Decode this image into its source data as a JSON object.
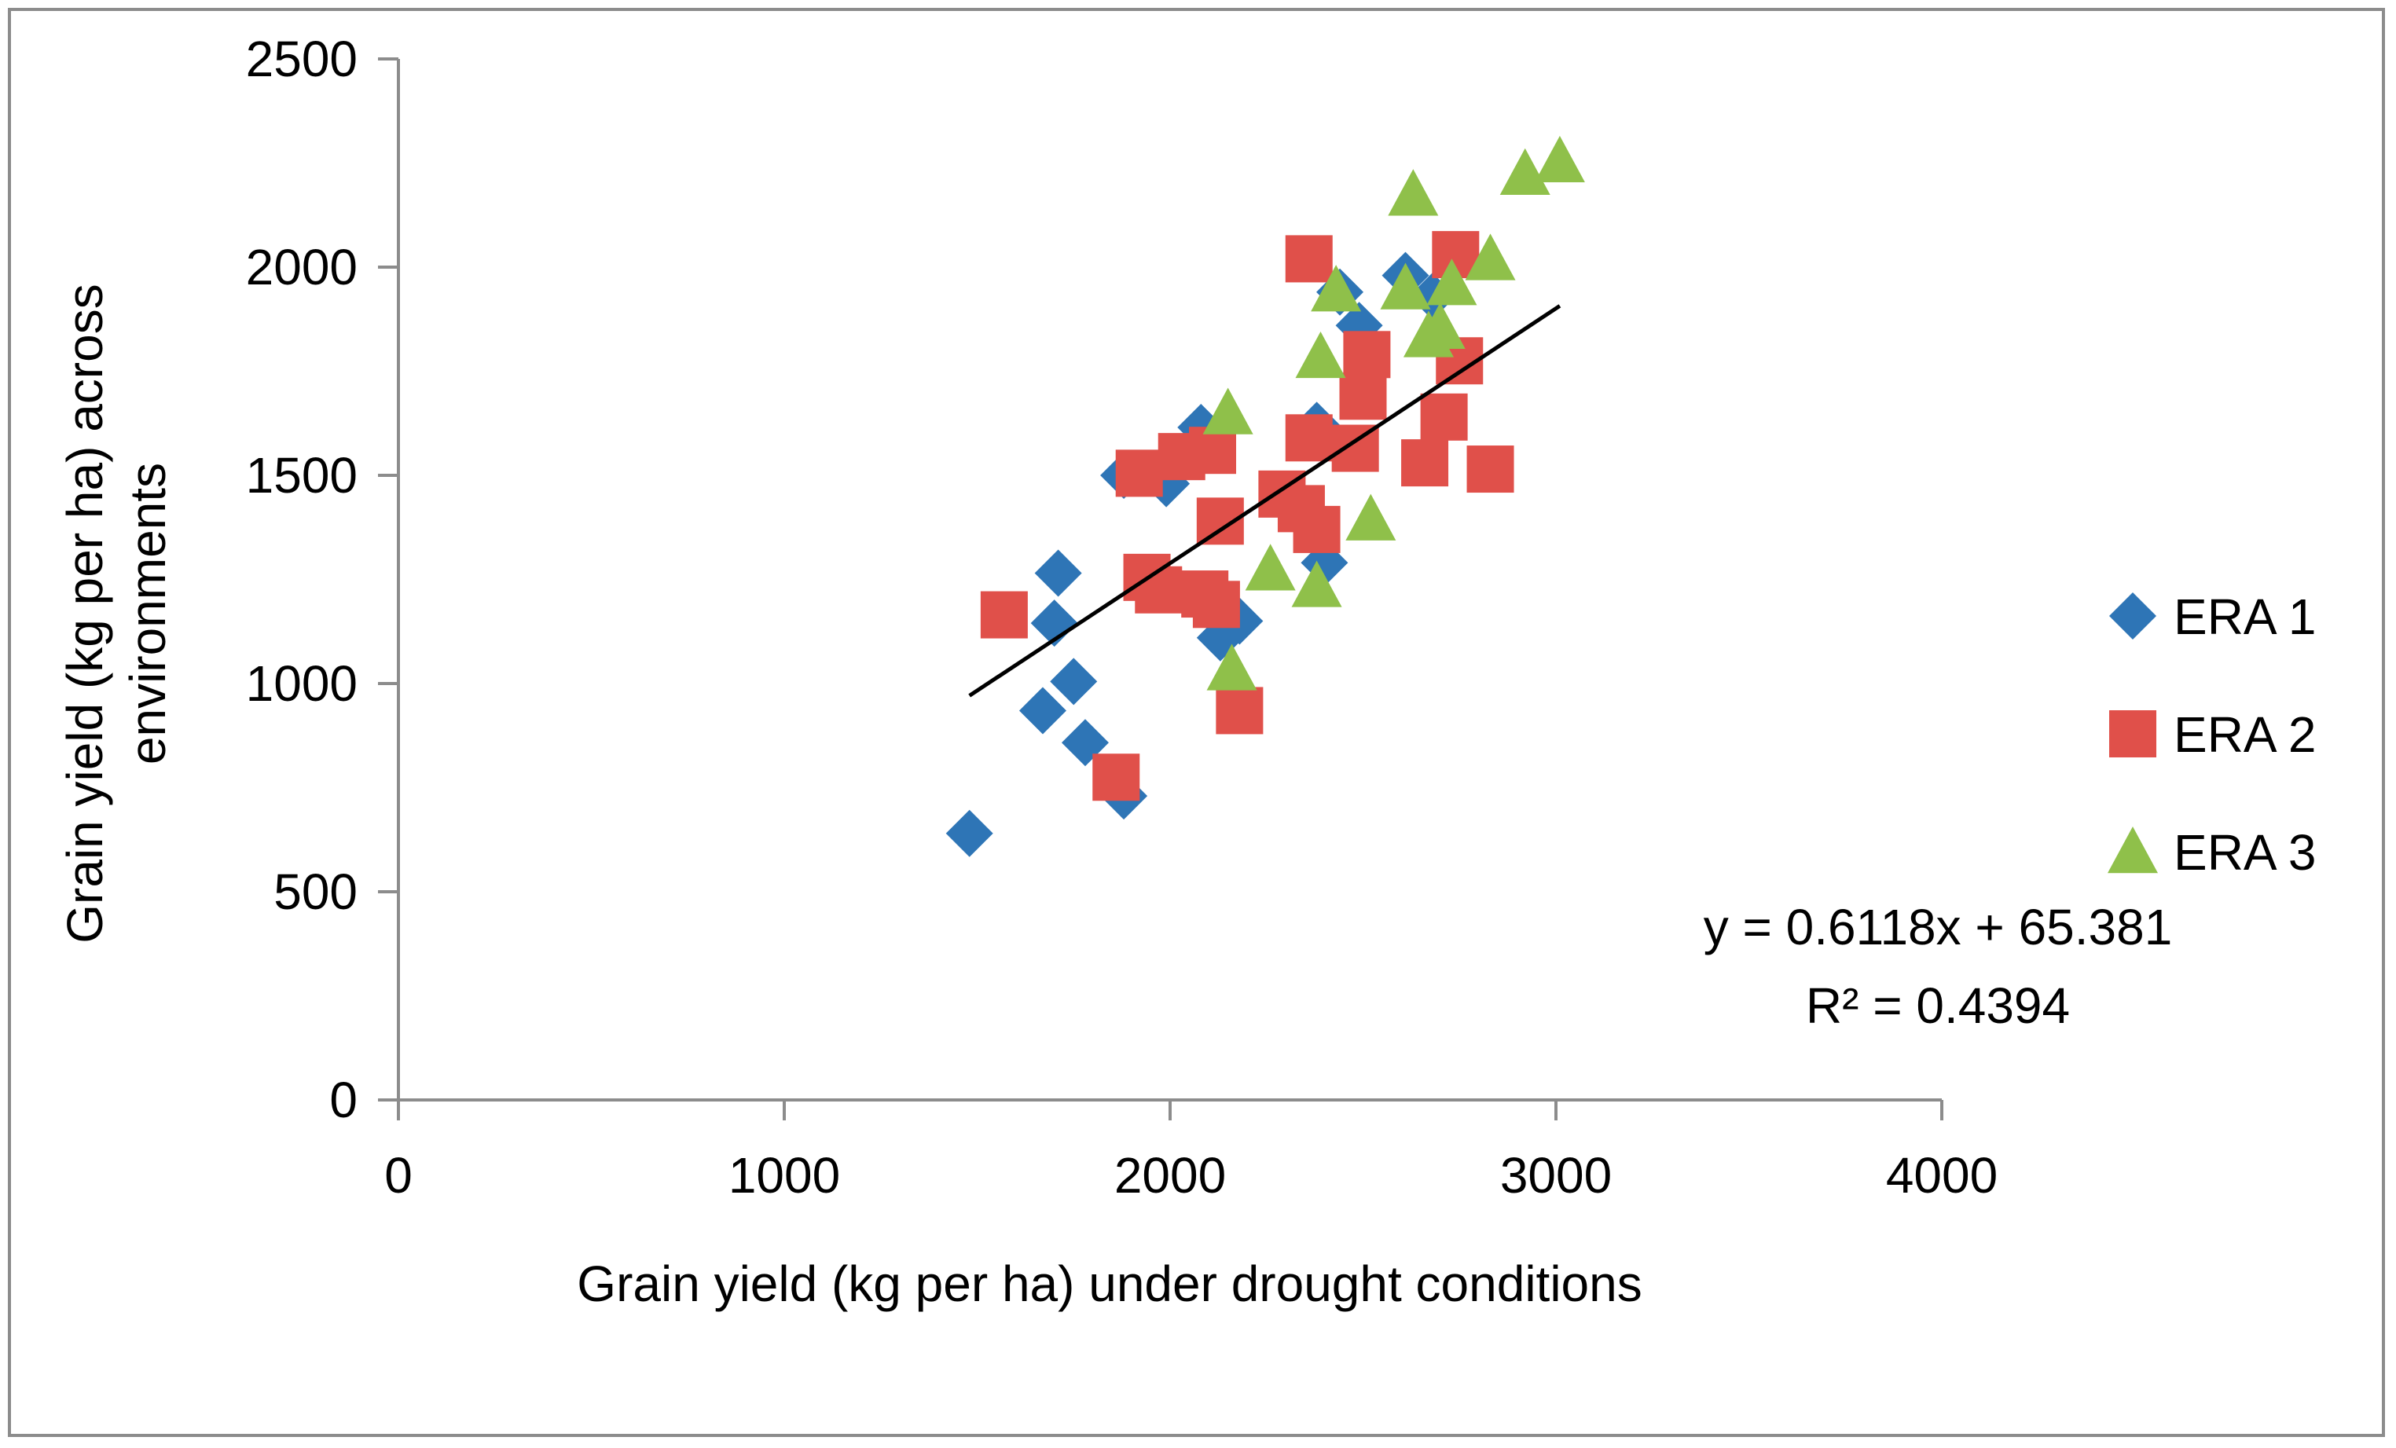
{
  "chart_data": {
    "type": "scatter",
    "title": "",
    "xlabel": "Grain yield (kg per ha) under drought conditions",
    "ylabel_lines": [
      "Grain yield (kg per ha) across",
      "environments"
    ],
    "xlim": [
      0,
      4000
    ],
    "ylim": [
      0,
      2500
    ],
    "xticks": [
      0,
      1000,
      2000,
      3000,
      4000
    ],
    "yticks": [
      0,
      500,
      1000,
      1500,
      2000,
      2500
    ],
    "grid": false,
    "legend_position": "right",
    "series": [
      {
        "name": "ERA 1",
        "marker": "diamond",
        "color": "#2E75B6",
        "points": [
          [
            1480,
            640
          ],
          [
            1670,
            935
          ],
          [
            1700,
            1145
          ],
          [
            1710,
            1265
          ],
          [
            1750,
            1005
          ],
          [
            1780,
            858
          ],
          [
            1880,
            730
          ],
          [
            1880,
            1500
          ],
          [
            1990,
            1480
          ],
          [
            2080,
            1615
          ],
          [
            2130,
            1110
          ],
          [
            2180,
            1150
          ],
          [
            2380,
            1620
          ],
          [
            2400,
            1290
          ],
          [
            2440,
            1940
          ],
          [
            2490,
            1860
          ],
          [
            2610,
            1980
          ],
          [
            2680,
            1930
          ]
        ]
      },
      {
        "name": "ERA 2",
        "marker": "square",
        "color": "#E0504A",
        "points": [
          [
            1570,
            1165
          ],
          [
            1860,
            775
          ],
          [
            1920,
            1505
          ],
          [
            1940,
            1255
          ],
          [
            1970,
            1225
          ],
          [
            2030,
            1545
          ],
          [
            2090,
            1215
          ],
          [
            2110,
            1560
          ],
          [
            2120,
            1190
          ],
          [
            2130,
            1390
          ],
          [
            2180,
            935
          ],
          [
            2290,
            1455
          ],
          [
            2340,
            1420
          ],
          [
            2360,
            1590
          ],
          [
            2380,
            1370
          ],
          [
            2360,
            2020
          ],
          [
            2480,
            1565
          ],
          [
            2500,
            1690
          ],
          [
            2510,
            1790
          ],
          [
            2660,
            1530
          ],
          [
            2710,
            1640
          ],
          [
            2740,
            2030
          ],
          [
            2750,
            1775
          ],
          [
            2830,
            1515
          ]
        ]
      },
      {
        "name": "ERA 3",
        "marker": "triangle",
        "color": "#8FC04A",
        "points": [
          [
            2150,
            1650
          ],
          [
            2160,
            1035
          ],
          [
            2260,
            1275
          ],
          [
            2380,
            1235
          ],
          [
            2390,
            1785
          ],
          [
            2430,
            1945
          ],
          [
            2520,
            1395
          ],
          [
            2610,
            1950
          ],
          [
            2630,
            2175
          ],
          [
            2670,
            1835
          ],
          [
            2700,
            1855
          ],
          [
            2730,
            1960
          ],
          [
            2830,
            2020
          ],
          [
            2920,
            2225
          ],
          [
            3010,
            2255
          ]
        ]
      }
    ],
    "trendline": {
      "slope": 0.6118,
      "intercept": 65.381,
      "x_range": [
        1480,
        3010
      ],
      "color": "#000000"
    },
    "annotations": {
      "equation": "y = 0.6118x + 65.381",
      "r_squared": "R² = 0.4394"
    }
  }
}
